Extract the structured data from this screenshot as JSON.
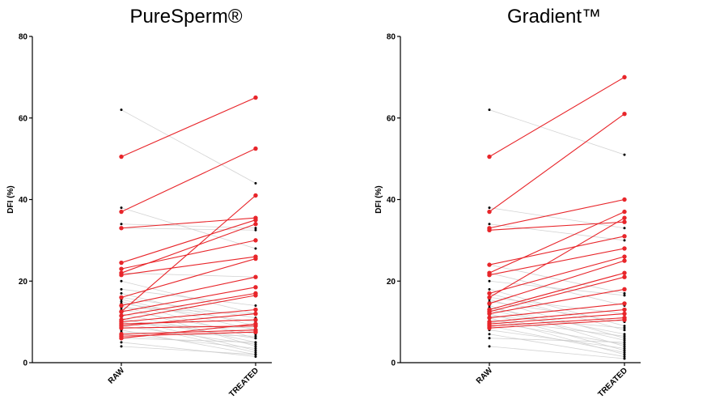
{
  "chart_data": [
    {
      "type": "line",
      "title": "PureSperm®",
      "ylabel": "DFI (%)",
      "ylim": [
        0,
        80
      ],
      "yticks": [
        0,
        20,
        40,
        60,
        80
      ],
      "categories": [
        "RAW",
        "TREATED"
      ],
      "colors": {
        "highlight": "#e8252a",
        "background": "#c8c8c8",
        "dot": "#000000"
      },
      "highlighted_pairs": [
        [
          50.5,
          65
        ],
        [
          37,
          52.5
        ],
        [
          33,
          35.5
        ],
        [
          24.5,
          35
        ],
        [
          23,
          30
        ],
        [
          22,
          34
        ],
        [
          21.5,
          26
        ],
        [
          16,
          25.5
        ],
        [
          14,
          21
        ],
        [
          12.5,
          41
        ],
        [
          12.5,
          18.5
        ],
        [
          11.5,
          17
        ],
        [
          10.5,
          16.5
        ],
        [
          10,
          13
        ],
        [
          9.5,
          10.5
        ],
        [
          9,
          12
        ],
        [
          8.5,
          9
        ],
        [
          7,
          8
        ],
        [
          6.5,
          7.5
        ],
        [
          6,
          9.5
        ]
      ],
      "background_pairs": [
        [
          62,
          44
        ],
        [
          38,
          28
        ],
        [
          34,
          33
        ],
        [
          33,
          32.5
        ],
        [
          22,
          21
        ],
        [
          20,
          12
        ],
        [
          18,
          14
        ],
        [
          17,
          9
        ],
        [
          16,
          11
        ],
        [
          15.5,
          8
        ],
        [
          15,
          6
        ],
        [
          14.5,
          10
        ],
        [
          14,
          4
        ],
        [
          13.5,
          12
        ],
        [
          13,
          7
        ],
        [
          12,
          5
        ],
        [
          11,
          3
        ],
        [
          10.5,
          6
        ],
        [
          10,
          2.5
        ],
        [
          9.5,
          8.5
        ],
        [
          9,
          4.5
        ],
        [
          8,
          2
        ],
        [
          7.5,
          6.5
        ],
        [
          7,
          3.5
        ],
        [
          6,
          5
        ],
        [
          5,
          1.5
        ],
        [
          4,
          2
        ]
      ]
    },
    {
      "type": "line",
      "title": "Gradient™",
      "ylabel": "DFI (%)",
      "ylim": [
        0,
        80
      ],
      "yticks": [
        0,
        20,
        40,
        60,
        80
      ],
      "categories": [
        "RAW",
        "TREATED"
      ],
      "colors": {
        "highlight": "#e8252a",
        "background": "#c8c8c8",
        "dot": "#000000"
      },
      "highlighted_pairs": [
        [
          50.5,
          70
        ],
        [
          37,
          61
        ],
        [
          33,
          40
        ],
        [
          32.5,
          34.5
        ],
        [
          24,
          31
        ],
        [
          22,
          37
        ],
        [
          21.5,
          28
        ],
        [
          17,
          26
        ],
        [
          16,
          35.5
        ],
        [
          14.5,
          25
        ],
        [
          13,
          22
        ],
        [
          12.5,
          21
        ],
        [
          12,
          18
        ],
        [
          11,
          14.5
        ],
        [
          10,
          13
        ],
        [
          9.5,
          12
        ],
        [
          9,
          11
        ],
        [
          8.5,
          10.5
        ]
      ],
      "background_pairs": [
        [
          62,
          51
        ],
        [
          38,
          33
        ],
        [
          34,
          30
        ],
        [
          24,
          17
        ],
        [
          22,
          14
        ],
        [
          20,
          16.5
        ],
        [
          18,
          9
        ],
        [
          17,
          8
        ],
        [
          16,
          12
        ],
        [
          15.5,
          6
        ],
        [
          15,
          10
        ],
        [
          14,
          4
        ],
        [
          13.5,
          7
        ],
        [
          13,
          5.5
        ],
        [
          12,
          3
        ],
        [
          11.5,
          8.5
        ],
        [
          11,
          2
        ],
        [
          10.5,
          6.5
        ],
        [
          10,
          4.5
        ],
        [
          9,
          2.5
        ],
        [
          8,
          3.5
        ],
        [
          7,
          1.5
        ],
        [
          6,
          5
        ],
        [
          4,
          1
        ]
      ]
    }
  ]
}
